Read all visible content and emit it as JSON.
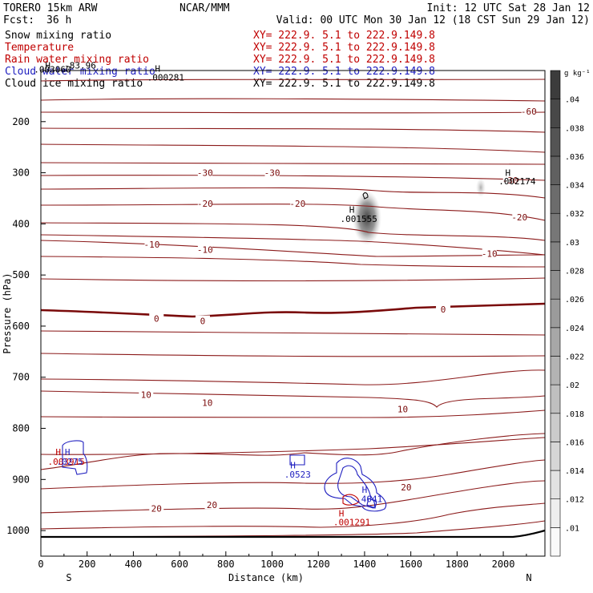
{
  "header": {
    "model": "TORERO  15km ARW",
    "center": "NCAR/MMM",
    "init": "Init: 12 UTC Sat 28 Jan 12",
    "fcst_label": "Fcst:",
    "fcst_value": "36 h",
    "valid": "Valid: 00 UTC Mon 30 Jan 12 (18 CST Sun 29 Jan 12)"
  },
  "legend": [
    {
      "name": "Snow mixing ratio",
      "xy": "XY= 222.9.  5.1 to 222.9.149.8",
      "color": "#000000"
    },
    {
      "name": "Temperature",
      "xy": "XY= 222.9.  5.1 to 222.9.149.8",
      "color": "#c00000"
    },
    {
      "name": "Rain water mixing ratio",
      "xy": "XY= 222.9.  5.1 to 222.9.149.8",
      "color": "#c00000"
    },
    {
      "name": "Cloud water mixing ratio",
      "xy": "XY= 222.9.  5.1 to 222.9.149.8",
      "color": "#2020c0"
    },
    {
      "name": "Cloud ice mixing ratio",
      "xy": "XY= 222.9.  5.1 to 222.9.149.8",
      "color": "#000000"
    }
  ],
  "chart_data": {
    "type": "cross-section contour",
    "xlabel": "Distance (km)",
    "ylabel": "Pressure (hPa)",
    "xlim": [
      0,
      2180
    ],
    "ylim_hPa": [
      1050,
      100
    ],
    "x_ticks": [
      0,
      200,
      400,
      600,
      800,
      1000,
      1200,
      1400,
      1600,
      1800,
      2000
    ],
    "y_ticks": [
      200,
      300,
      400,
      500,
      600,
      700,
      800,
      900,
      1000
    ],
    "x_end_labels": {
      "left": "S",
      "right": "N"
    },
    "colorbar": {
      "unit": "g kg⁻¹",
      "ticks": [
        ".01",
        ".012",
        ".014",
        ".016",
        ".018",
        ".02",
        ".022",
        ".024",
        ".026",
        ".028",
        ".03",
        ".032",
        ".034",
        ".036",
        ".038",
        ".04"
      ]
    },
    "temperature_labels": [
      {
        "text": "-60",
        "km": 2110,
        "hPa": 180
      },
      {
        "text": "-30",
        "km": 710,
        "hPa": 300
      },
      {
        "text": "-30",
        "km": 1000,
        "hPa": 300
      },
      {
        "text": "-30",
        "km": 2030,
        "hPa": 315
      },
      {
        "text": "-20",
        "km": 710,
        "hPa": 360
      },
      {
        "text": "-20",
        "km": 1110,
        "hPa": 360
      },
      {
        "text": "-20",
        "km": 2070,
        "hPa": 387
      },
      {
        "text": "-10",
        "km": 480,
        "hPa": 440
      },
      {
        "text": "-10",
        "km": 710,
        "hPa": 450
      },
      {
        "text": "-10",
        "km": 1940,
        "hPa": 458
      },
      {
        "text": "0",
        "km": 500,
        "hPa": 585
      },
      {
        "text": "0",
        "km": 700,
        "hPa": 590
      },
      {
        "text": "0",
        "km": 1740,
        "hPa": 567
      },
      {
        "text": "10",
        "km": 455,
        "hPa": 734
      },
      {
        "text": "10",
        "km": 720,
        "hPa": 750
      },
      {
        "text": "10",
        "km": 1565,
        "hPa": 762
      },
      {
        "text": "20",
        "km": 500,
        "hPa": 957
      },
      {
        "text": "20",
        "km": 740,
        "hPa": 950
      },
      {
        "text": "20",
        "km": 1580,
        "hPa": 915
      }
    ],
    "maxima_labels": [
      {
        "text": "H",
        "km": 30,
        "hPa": 90,
        "color": "#000000"
      },
      {
        "text": ".003060",
        "km": 50,
        "hPa": 98,
        "color": "#000000"
      },
      {
        "text": "-83.96",
        "km": 170,
        "hPa": 90,
        "color": "#000000"
      },
      {
        "text": "H",
        "km": 505,
        "hPa": 96,
        "color": "#000000"
      },
      {
        "text": ".000281",
        "km": 540,
        "hPa": 113,
        "color": "#000000"
      },
      {
        "text": "H",
        "km": 2020,
        "hPa": 300,
        "color": "#000000"
      },
      {
        "text": ".002174",
        "km": 2060,
        "hPa": 316,
        "color": "#000000"
      },
      {
        "text": "H",
        "km": 1345,
        "hPa": 372,
        "color": "#000000"
      },
      {
        "text": ".001555",
        "km": 1375,
        "hPa": 390,
        "color": "#000000"
      },
      {
        "text": "H",
        "km": 75,
        "hPa": 846,
        "color": "#c00000"
      },
      {
        "text": "H",
        "km": 115,
        "hPa": 846,
        "color": "#2020c0"
      },
      {
        "text": ".003915",
        "km": 110,
        "hPa": 865,
        "color": "#c00000"
      },
      {
        "text": ".0275",
        "km": 125,
        "hPa": 865,
        "color": "#2020c0"
      },
      {
        "text": "H",
        "km": 1090,
        "hPa": 872,
        "color": "#2020c0"
      },
      {
        "text": ".0523",
        "km": 1110,
        "hPa": 890,
        "color": "#2020c0"
      },
      {
        "text": "H",
        "km": 1400,
        "hPa": 920,
        "color": "#2020c0"
      },
      {
        "text": ".4041",
        "km": 1420,
        "hPa": 938,
        "color": "#2020c0"
      },
      {
        "text": "H",
        "km": 1300,
        "hPa": 966,
        "color": "#c00000"
      },
      {
        "text": ".001291",
        "km": 1345,
        "hPa": 983,
        "color": "#c00000"
      }
    ]
  }
}
